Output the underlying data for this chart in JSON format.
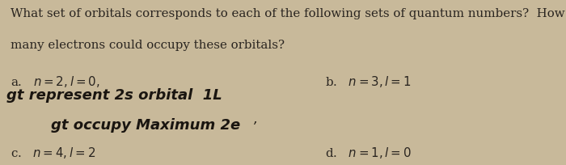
{
  "background_color": "#c8b99a",
  "title_line1": "What set of orbitals corresponds to each of the following sets of quantum numbers?  How",
  "title_line2": "many electrons could occupy these orbitals?",
  "font_color": "#2a2520",
  "handwritten_color": "#1a1510",
  "printed_fontsize": 10.8,
  "handwritten_fontsize": 13.0,
  "label_fontsize": 10.8,
  "item_a_printed": "a.   n = 2, l = 0,",
  "item_a_hw1_prefix": "gt",
  "item_a_hw1_main": " represent 2s orbital  1L",
  "item_a_hw2": "gt occupy Maximum 2e",
  "item_b_printed": "b.   n = 3, l = 1",
  "item_c_printed": "c.   n = 4, l = 2",
  "item_d_printed": "d.   n = 1, l = 0"
}
